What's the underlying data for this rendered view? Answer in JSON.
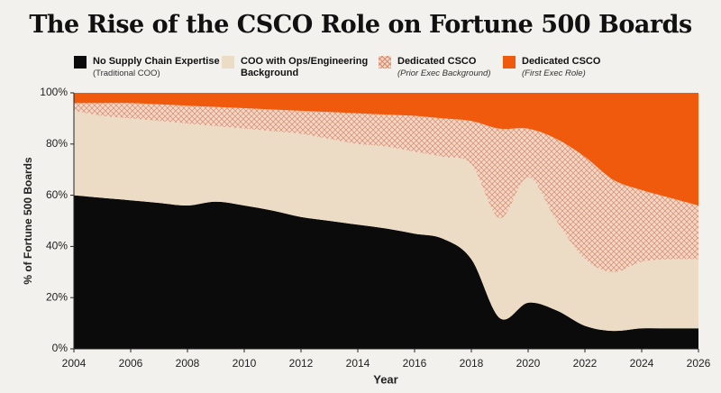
{
  "chart_data": {
    "type": "stacked-area",
    "title": "The Rise of the CSCO Role on Fortune 500 Boards",
    "x_label": "Year",
    "y_label": "% of Fortune 500 Boards",
    "x": [
      2004,
      2005,
      2006,
      2007,
      2008,
      2009,
      2010,
      2011,
      2012,
      2013,
      2014,
      2015,
      2016,
      2017,
      2018,
      2019,
      2020,
      2021,
      2022,
      2023,
      2024,
      2025,
      2026
    ],
    "xlim": [
      2004,
      2026
    ],
    "xticks": [
      2004,
      2006,
      2008,
      2010,
      2012,
      2014,
      2016,
      2018,
      2020,
      2022,
      2024,
      2026
    ],
    "ylim": [
      0,
      100
    ],
    "yticks": [
      {
        "value": 0,
        "label": "0%"
      },
      {
        "value": 20,
        "label": "20%"
      },
      {
        "value": 40,
        "label": "40%"
      },
      {
        "value": 60,
        "label": "60%"
      },
      {
        "value": 80,
        "label": "80%"
      },
      {
        "value": 100,
        "label": "100%"
      }
    ],
    "series": [
      {
        "name": "No Supply Chain Expertise",
        "note": "(Traditional COO)",
        "color": "#0b0b0b",
        "values": [
          60,
          59,
          58,
          57,
          56,
          57.5,
          56,
          54,
          51.5,
          50,
          48.5,
          47,
          45,
          43,
          35,
          12,
          18,
          15,
          9,
          7,
          8,
          8,
          8
        ]
      },
      {
        "name": "COO with Ops/Engineering Background",
        "color": "#ecdcc6",
        "values": [
          33,
          32,
          32,
          32,
          32,
          29.5,
          30,
          31,
          32.5,
          32,
          31.5,
          32,
          32,
          32,
          37,
          39,
          49,
          35,
          26,
          23,
          26,
          27,
          27
        ]
      },
      {
        "name": "Dedicated CSCO",
        "note": "(Prior Exec Background)",
        "color": "#f1d8c6",
        "hatch": "#d98a6e",
        "values": [
          3,
          5,
          6,
          6.5,
          7,
          7.5,
          8,
          8.5,
          9,
          10.5,
          12,
          12.5,
          14,
          15,
          17,
          35,
          19,
          32,
          40,
          36,
          28,
          24,
          21
        ]
      },
      {
        "name": "Dedicated CSCO",
        "note": "(First Exec Role)",
        "color": "#f05a0c",
        "values": [
          4,
          4,
          4,
          4.5,
          5,
          5.5,
          6,
          6.5,
          7,
          7.5,
          8,
          8.5,
          9,
          10,
          11,
          14,
          14,
          18,
          25,
          34,
          38,
          41,
          44
        ]
      }
    ]
  }
}
